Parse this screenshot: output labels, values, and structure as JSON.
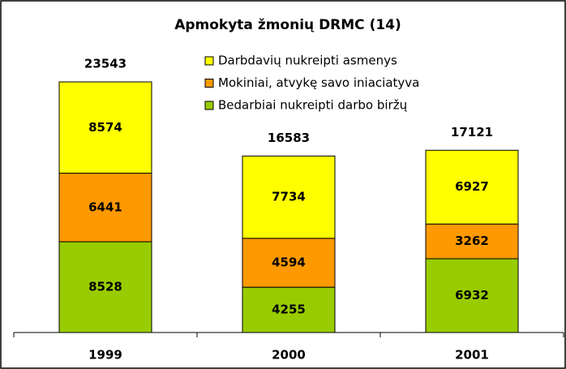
{
  "chart_data": {
    "type": "stacked_bar",
    "title": "Apmokyta žmonių DRMC (14)",
    "categories": [
      "1999",
      "2000",
      "2001"
    ],
    "series": [
      {
        "name": "Bedarbiai nukreipti darbo biržų",
        "color": "#99cc00",
        "values": [
          8528,
          4255,
          6932
        ]
      },
      {
        "name": "Mokiniai, atvykę savo iniaciatyva",
        "color": "#ff9900",
        "values": [
          6441,
          4594,
          3262
        ]
      },
      {
        "name": "Darbdavių nukreipti asmenys",
        "color": "#ffff00",
        "values": [
          8574,
          7734,
          6927
        ]
      }
    ],
    "totals": [
      23543,
      16583,
      17121
    ],
    "legend": "top-right"
  }
}
